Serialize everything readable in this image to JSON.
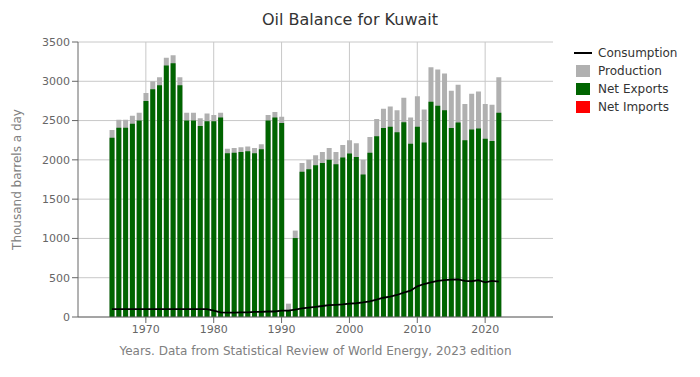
{
  "chart_data": {
    "type": "bar",
    "title": "Oil Balance for Kuwait",
    "xlabel": "Years. Data from Statistical Review of World Energy, 2023 edition",
    "ylabel": "Thousand barrels a day",
    "x": [
      1965,
      1966,
      1967,
      1968,
      1969,
      1970,
      1971,
      1972,
      1973,
      1974,
      1975,
      1976,
      1977,
      1978,
      1979,
      1980,
      1981,
      1982,
      1983,
      1984,
      1985,
      1986,
      1987,
      1988,
      1989,
      1990,
      1991,
      1992,
      1993,
      1994,
      1995,
      1996,
      1997,
      1998,
      1999,
      2000,
      2001,
      2002,
      2003,
      2004,
      2005,
      2006,
      2007,
      2008,
      2009,
      2010,
      2011,
      2012,
      2013,
      2014,
      2015,
      2016,
      2017,
      2018,
      2019,
      2020,
      2021,
      2022
    ],
    "xlim": [
      1960,
      2030
    ],
    "xticks": [
      1970,
      1980,
      1990,
      2000,
      2010,
      2020
    ],
    "ylim": [
      0,
      3500
    ],
    "yticks": [
      0,
      500,
      1000,
      1500,
      2000,
      2500,
      3000,
      3500
    ],
    "grid": true,
    "legend": "right",
    "series": [
      {
        "name": "Consumption",
        "type": "line",
        "color": "#000000",
        "values": [
          100,
          100,
          100,
          100,
          100,
          100,
          100,
          100,
          100,
          100,
          100,
          100,
          100,
          100,
          100,
          80,
          60,
          55,
          55,
          60,
          60,
          65,
          65,
          70,
          70,
          80,
          80,
          95,
          110,
          120,
          130,
          140,
          150,
          155,
          160,
          170,
          175,
          185,
          200,
          220,
          245,
          260,
          280,
          310,
          335,
          390,
          420,
          440,
          460,
          470,
          475,
          480,
          460,
          455,
          470,
          440,
          460,
          450
        ]
      },
      {
        "name": "Production",
        "type": "bar",
        "color": "#b0b0b0",
        "values": [
          2380,
          2510,
          2510,
          2560,
          2600,
          2850,
          3000,
          3050,
          3300,
          3330,
          3050,
          2600,
          2600,
          2530,
          2590,
          2570,
          2600,
          2140,
          2150,
          2160,
          2170,
          2150,
          2200,
          2570,
          2610,
          2550,
          170,
          1100,
          1960,
          2000,
          2060,
          2100,
          2150,
          2100,
          2190,
          2250,
          2210,
          2000,
          2290,
          2520,
          2650,
          2680,
          2630,
          2790,
          2540,
          2810,
          2640,
          3180,
          3150,
          3100,
          2880,
          2955,
          2710,
          2840,
          2870,
          2710,
          2700,
          3050
        ]
      },
      {
        "name": "Net Exports",
        "type": "bar",
        "color": "#006400",
        "values": [
          2280,
          2410,
          2410,
          2460,
          2500,
          2750,
          2900,
          2950,
          3200,
          3230,
          2950,
          2500,
          2500,
          2430,
          2490,
          2490,
          2540,
          2085,
          2090,
          2100,
          2110,
          2085,
          2135,
          2500,
          2540,
          2470,
          90,
          1005,
          1850,
          1880,
          1930,
          1960,
          2000,
          1945,
          2030,
          2080,
          2035,
          1815,
          2090,
          2300,
          2405,
          2420,
          2350,
          2480,
          2205,
          2420,
          2220,
          2740,
          2690,
          2630,
          2405,
          2475,
          2250,
          2385,
          2400,
          2270,
          2240,
          2600
        ]
      },
      {
        "name": "Net Imports",
        "type": "bar",
        "color": "#ff0000",
        "values": [
          null,
          null,
          null,
          null,
          null,
          null,
          null,
          null,
          null,
          null,
          null,
          null,
          null,
          null,
          null,
          null,
          null,
          null,
          null,
          null,
          null,
          null,
          null,
          null,
          null,
          null,
          null,
          null,
          null,
          null,
          null,
          null,
          null,
          null,
          null,
          null,
          null,
          null,
          null,
          null,
          null,
          null,
          null,
          null,
          null,
          null,
          null,
          null,
          null,
          null,
          null,
          null,
          null,
          null,
          null,
          null,
          null,
          null
        ]
      }
    ]
  }
}
